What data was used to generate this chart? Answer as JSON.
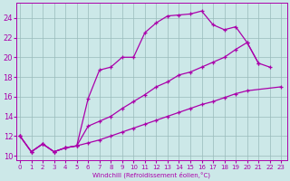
{
  "xlabel": "Windchill (Refroidissement éolien,°C)",
  "bg_color": "#cce8e8",
  "line_color": "#aa00aa",
  "grid_color": "#99bbbb",
  "x_ticks": [
    0,
    1,
    2,
    3,
    4,
    5,
    6,
    7,
    8,
    9,
    10,
    11,
    12,
    13,
    14,
    15,
    16,
    17,
    18,
    19,
    20,
    21,
    22,
    23
  ],
  "y_ticks": [
    10,
    12,
    14,
    16,
    18,
    20,
    22,
    24
  ],
  "xlim": [
    -0.3,
    23.5
  ],
  "ylim": [
    9.5,
    25.5
  ],
  "line1_x": [
    0,
    1,
    2,
    3,
    4,
    5,
    6,
    7,
    8,
    9,
    10,
    11,
    12,
    13,
    14,
    15,
    16,
    17,
    18,
    19,
    20,
    21
  ],
  "line1_y": [
    12.0,
    10.4,
    11.2,
    10.4,
    10.8,
    11.0,
    15.8,
    18.7,
    19.0,
    20.0,
    20.0,
    22.5,
    23.5,
    24.2,
    24.3,
    24.4,
    24.7,
    23.3,
    22.8,
    23.1,
    21.5,
    19.4
  ],
  "line2_x": [
    0,
    1,
    2,
    3,
    4,
    5,
    6,
    7,
    8,
    9,
    10,
    11,
    12,
    13,
    14,
    15,
    16,
    17,
    18,
    19,
    20,
    21,
    22,
    23
  ],
  "line2_y": [
    12.0,
    10.4,
    11.2,
    10.4,
    10.8,
    11.0,
    13.0,
    13.5,
    14.0,
    14.8,
    15.5,
    16.2,
    17.0,
    17.5,
    18.2,
    18.5,
    19.0,
    19.5,
    20.0,
    20.8,
    21.5,
    19.4,
    19.0,
    null
  ],
  "line3_x": [
    0,
    1,
    2,
    3,
    4,
    5,
    6,
    7,
    8,
    9,
    10,
    11,
    12,
    13,
    14,
    15,
    16,
    17,
    18,
    19,
    20,
    21,
    22,
    23
  ],
  "line3_y": [
    12.0,
    10.4,
    11.2,
    10.4,
    10.8,
    11.0,
    11.3,
    11.6,
    12.0,
    12.4,
    12.8,
    13.2,
    13.6,
    14.0,
    14.4,
    14.8,
    15.2,
    15.5,
    15.9,
    16.3,
    16.6,
    null,
    null,
    17.0
  ]
}
